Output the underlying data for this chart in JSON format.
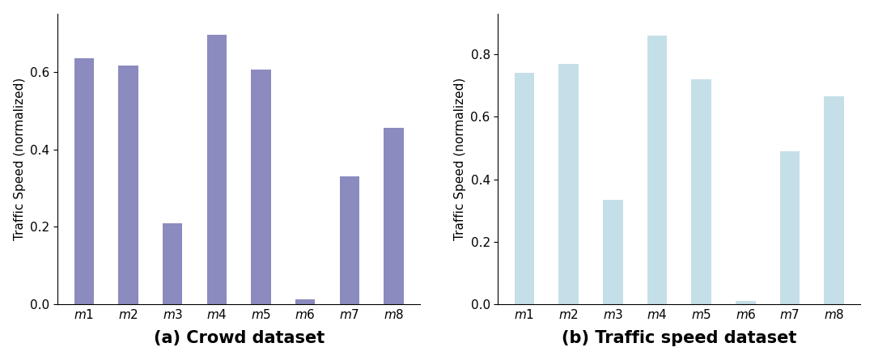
{
  "categories": [
    "m1",
    "m2",
    "m3",
    "m4",
    "m5",
    "m6",
    "m7",
    "m8"
  ],
  "values_a": [
    0.635,
    0.615,
    0.21,
    0.695,
    0.605,
    0.013,
    0.33,
    0.455
  ],
  "values_b": [
    0.74,
    0.77,
    0.335,
    0.86,
    0.72,
    0.01,
    0.49,
    0.665
  ],
  "color_a": "#8b8bbf",
  "color_b": "#c5dfe8",
  "ylabel": "Traffic Speed (normalized)",
  "title_a": "(a) Crowd dataset",
  "title_b": "(b) Traffic speed dataset",
  "title_fontsize": 15,
  "tick_fontsize": 11,
  "ylabel_fontsize": 11,
  "bar_width": 0.45,
  "ylim_a": [
    0,
    0.75
  ],
  "ylim_b": [
    0,
    0.93
  ]
}
